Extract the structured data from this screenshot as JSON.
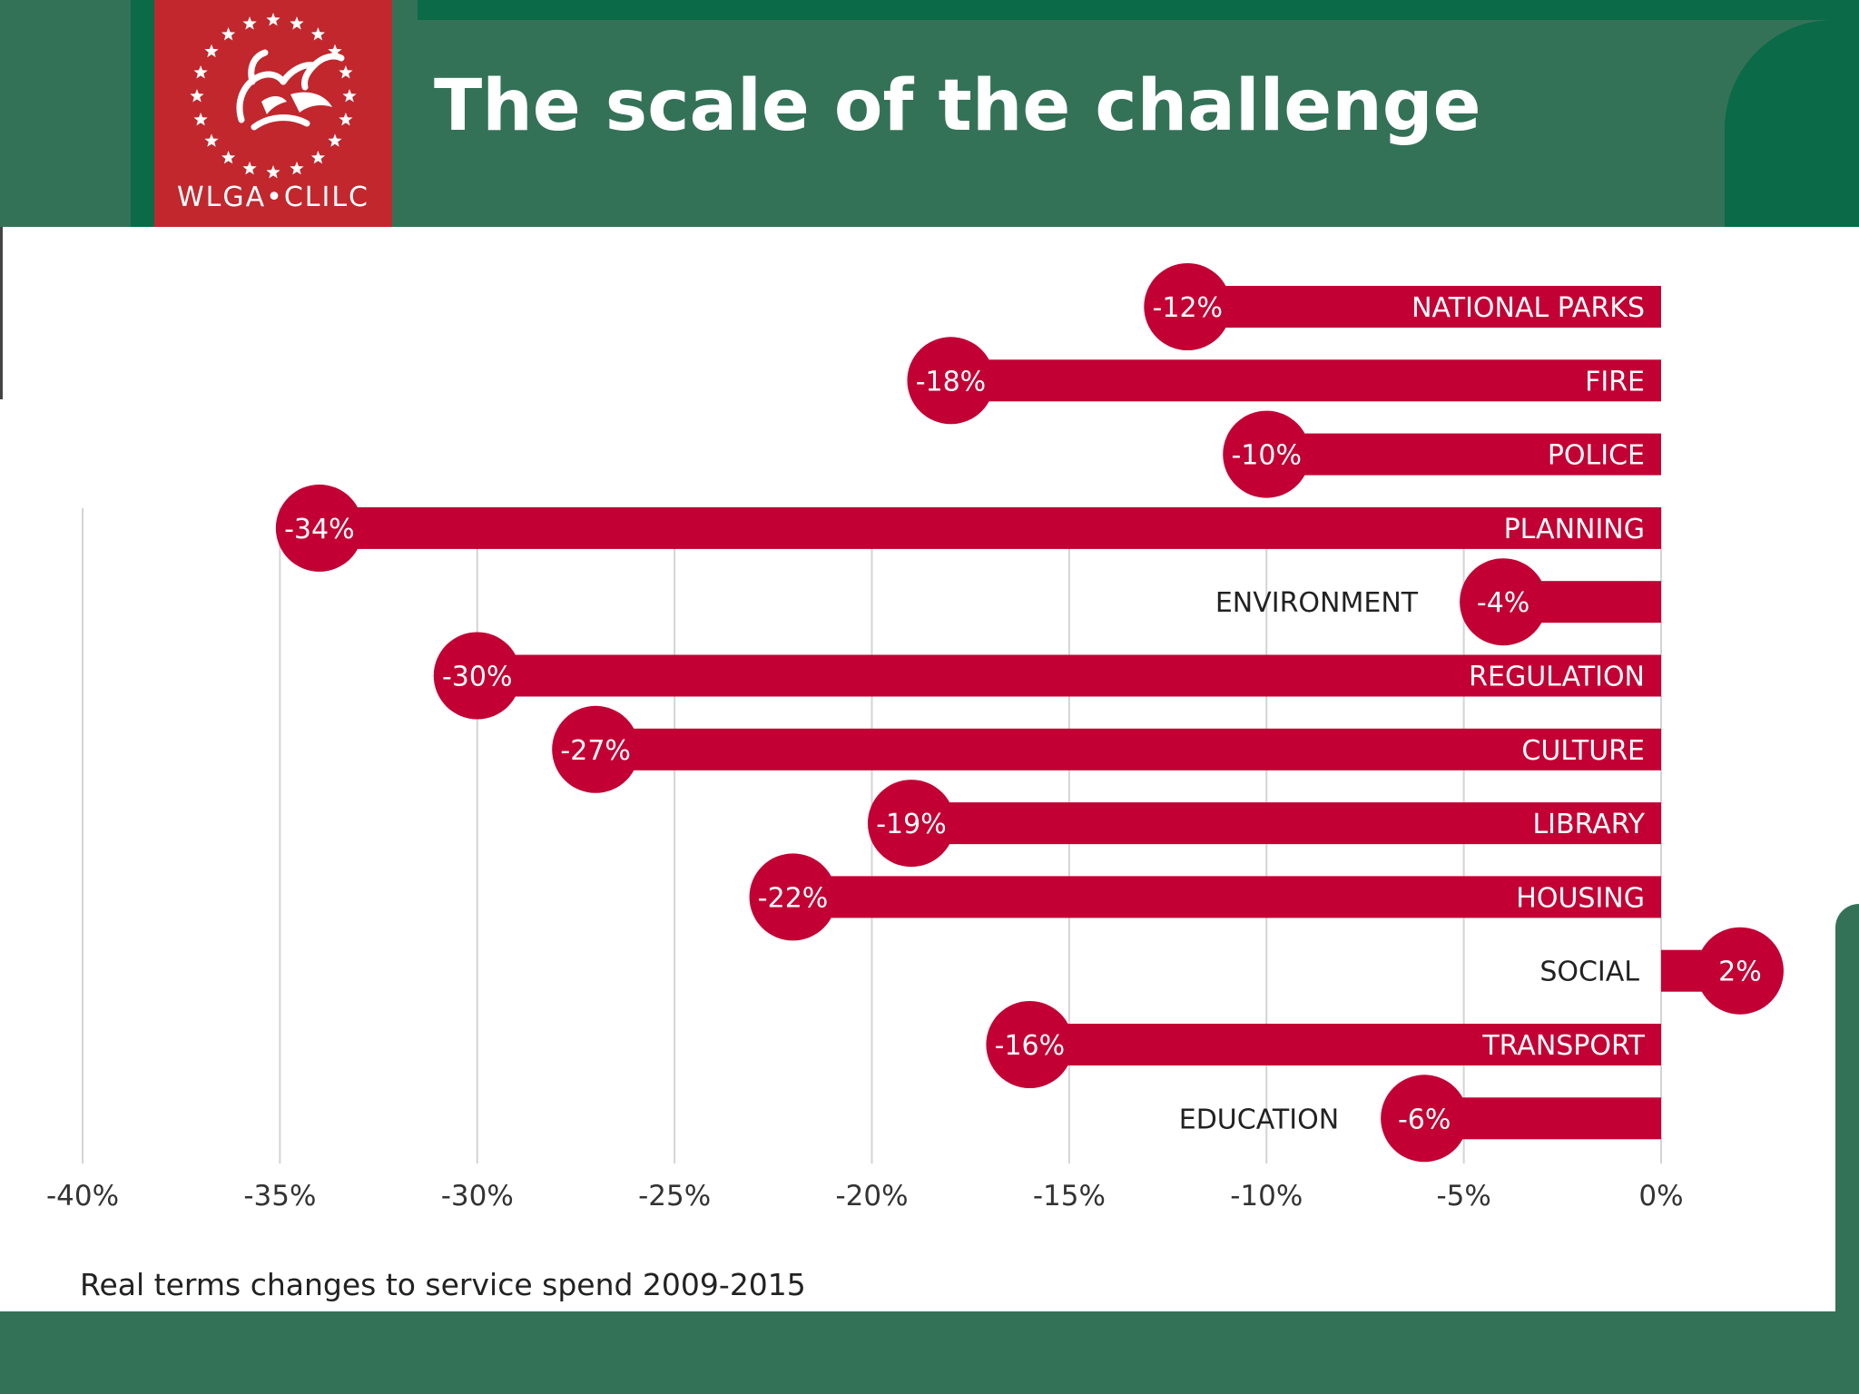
{
  "header": {
    "title": "The scale of the challenge",
    "logo_text": "WLGA•CLILC"
  },
  "caption": "Real terms changes to service spend 2009-2015",
  "colors": {
    "header_green": "#347258",
    "dark_green": "#0b6a48",
    "logo_red": "#c1272d",
    "bar_red": "#c20034"
  },
  "chart_data": {
    "type": "bar",
    "orientation": "horizontal",
    "categories": [
      "NATIONAL PARKS",
      "FIRE",
      "POLICE",
      "PLANNING",
      "ENVIRONMENT",
      "REGULATION",
      "CULTURE",
      "LIBRARY",
      "HOUSING",
      "SOCIAL",
      "TRANSPORT",
      "EDUCATION"
    ],
    "values": [
      -12,
      -18,
      -10,
      -34,
      -4,
      -30,
      -27,
      -19,
      -22,
      2,
      -16,
      -6
    ],
    "data_labels": [
      "-12%",
      "-18%",
      "-10%",
      "-34%",
      "-4%",
      "-30%",
      "-27%",
      "-19%",
      "-22%",
      "2%",
      "-16%",
      "-6%"
    ],
    "xlim": [
      -40,
      0
    ],
    "x_ticks": [
      -40,
      -35,
      -30,
      -25,
      -20,
      -15,
      -10,
      -5,
      0
    ],
    "x_tick_labels": [
      "-40%",
      "-35%",
      "-30%",
      "-25%",
      "-20%",
      "-15%",
      "-10%",
      "-5%",
      "0%"
    ],
    "grid": true,
    "legend": "none"
  }
}
